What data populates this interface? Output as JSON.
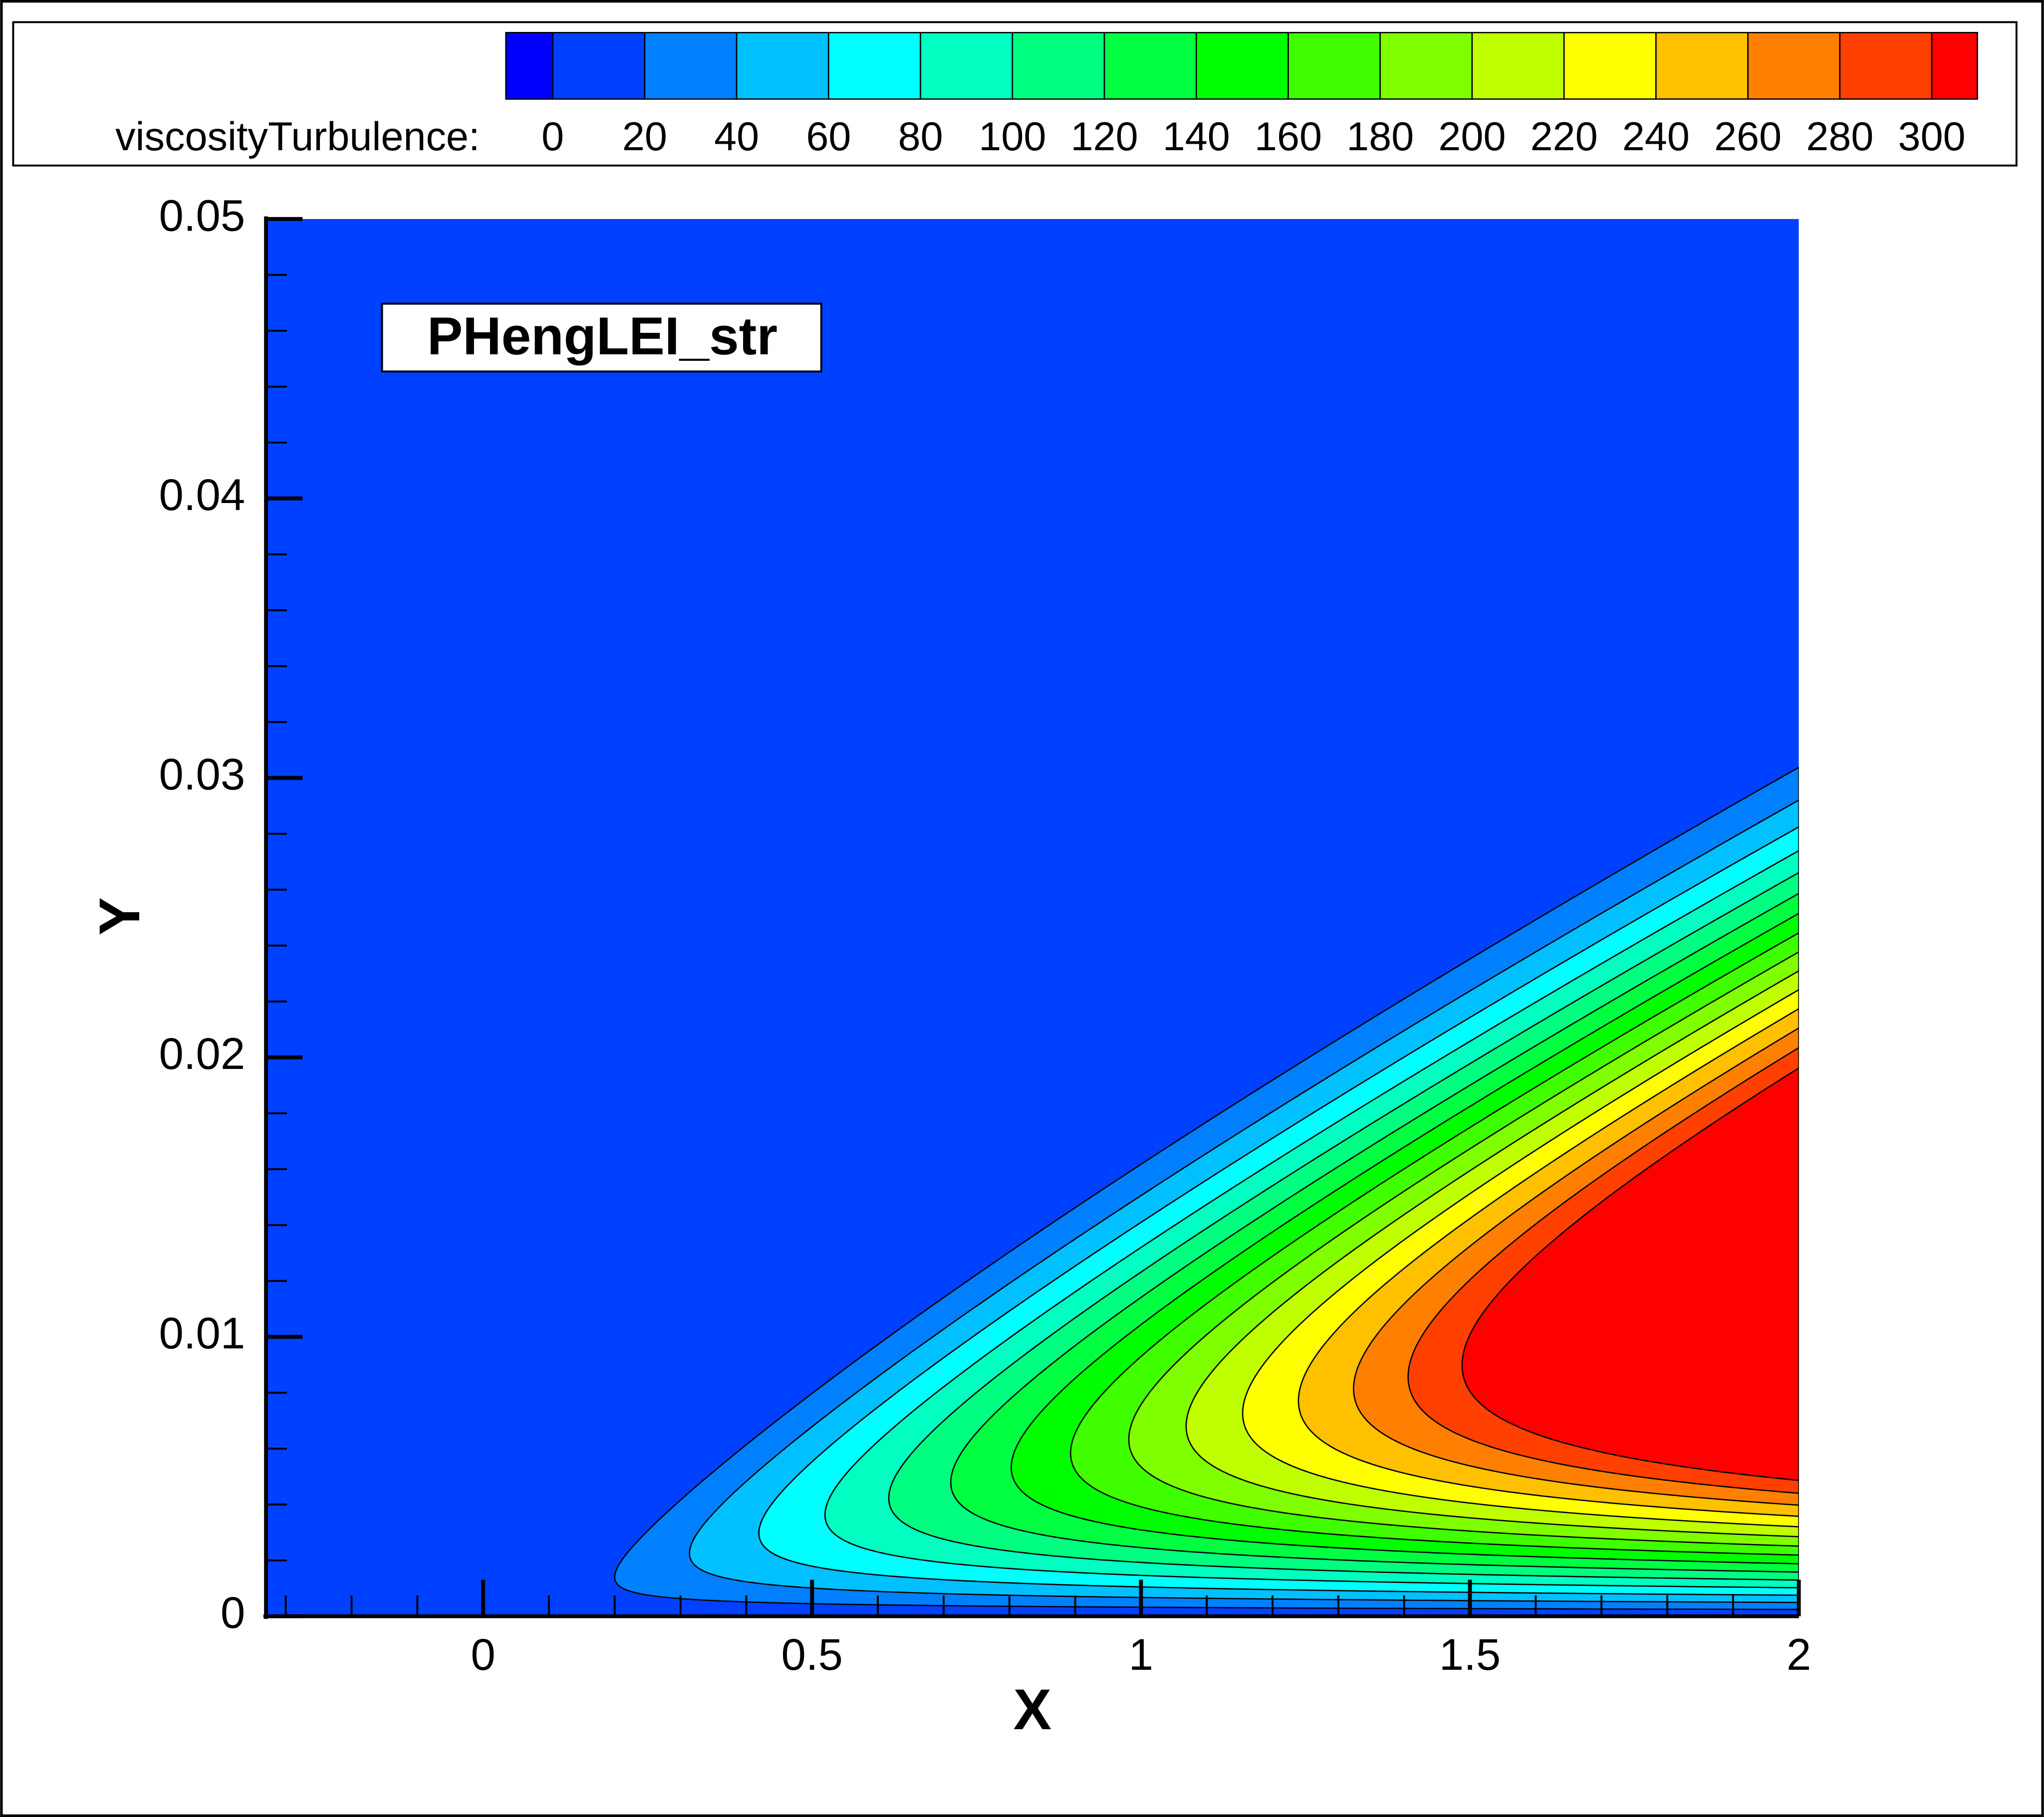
{
  "chart_data": {
    "type": "contour",
    "legend_title": "viscosityTurbulence:",
    "levels": [
      0,
      20,
      40,
      60,
      80,
      100,
      120,
      140,
      160,
      180,
      200,
      220,
      240,
      260,
      280,
      300
    ],
    "colors": [
      "#0000ff",
      "#0040ff",
      "#0080ff",
      "#00c0ff",
      "#00ffff",
      "#00ffc0",
      "#00ff80",
      "#00ff40",
      "#00ff00",
      "#40ff00",
      "#80ff00",
      "#c0ff00",
      "#ffff00",
      "#ffc000",
      "#ff8000",
      "#ff4000",
      "#ff0000"
    ],
    "annotation": "PHengLEI_str",
    "xlabel": "X",
    "ylabel": "Y",
    "xlim": [
      -0.33,
      2
    ],
    "ylim": [
      0,
      0.05
    ],
    "xticks": [
      0,
      0.5,
      1,
      1.5,
      2
    ],
    "yticks": [
      0,
      0.01,
      0.02,
      0.03,
      0.04,
      0.05
    ]
  }
}
